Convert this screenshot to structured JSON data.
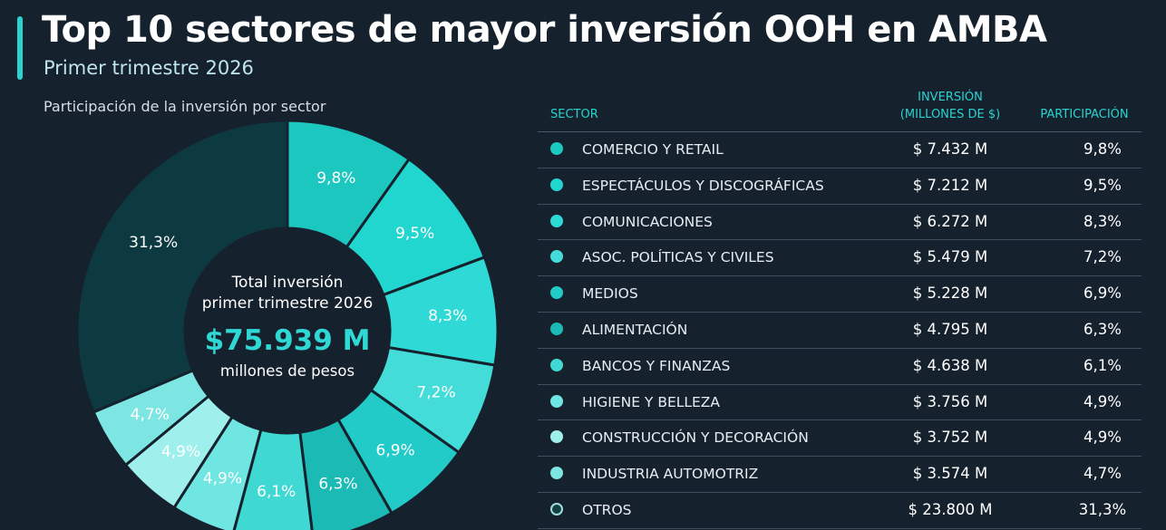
{
  "header": {
    "title": "Top 10 sectores de mayor inversión OOH en AMBA",
    "subtitle": "Primer trimestre 2026"
  },
  "chart_caption": "Participación de la inversión por sector",
  "center": {
    "line1": "Total inversión",
    "line2": "primer trimestre 2026",
    "total": "$75.939 M",
    "unit": "millones de pesos"
  },
  "table": {
    "headers": {
      "sector": "SECTOR",
      "inv_line1": "INVERSIÓN",
      "inv_line2": "(MILLONES DE $)",
      "part": "PARTICIPACIÓN"
    },
    "rows": [
      {
        "sector": "COMERCIO Y RETAIL",
        "inversion": "$ 7.432 M",
        "participacion": "9,8%",
        "color": "#1cc7c0"
      },
      {
        "sector": "ESPECTÁCULOS Y DISCOGRÁFICAS",
        "inversion": "$ 7.212 M",
        "participacion": "9,5%",
        "color": "#22d6d0"
      },
      {
        "sector": "COMUNICACIONES",
        "inversion": "$ 6.272 M",
        "participacion": "8,3%",
        "color": "#2fdad6"
      },
      {
        "sector": "ASOC. POLÍTICAS Y CIVILES",
        "inversion": "$ 5.479 M",
        "participacion": "7,2%",
        "color": "#44dcd8"
      },
      {
        "sector": "MEDIOS",
        "inversion": "$ 5.228 M",
        "participacion": "6,9%",
        "color": "#22cbc7"
      },
      {
        "sector": "ALIMENTACIÓN",
        "inversion": "$ 4.795 M",
        "participacion": "6,3%",
        "color": "#1cbab5"
      },
      {
        "sector": "BANCOS Y FINANZAS",
        "inversion": "$ 4.638 M",
        "participacion": "6,1%",
        "color": "#3fd8d2"
      },
      {
        "sector": "HIGIENE Y BELLEZA",
        "inversion": "$ 3.756 M",
        "participacion": "4,9%",
        "color": "#6fe6e2"
      },
      {
        "sector": "CONSTRUCCIÓN Y DECORACIÓN",
        "inversion": "$ 3.752 M",
        "participacion": "4,9%",
        "color": "#9ff0ec"
      },
      {
        "sector": "INDUSTRIA AUTOMOTRIZ",
        "inversion": "$ 3.574 M",
        "participacion": "4,7%",
        "color": "#7ee6e2"
      },
      {
        "sector": "OTROS",
        "inversion": "$ 23.800 M",
        "participacion": "31,3%",
        "color": "#113f45"
      }
    ]
  },
  "chart_data": {
    "type": "pie",
    "categories": [
      "COMERCIO Y RETAIL",
      "ESPECTÁCULOS Y DISCOGRÁFICAS",
      "COMUNICACIONES",
      "ASOC. POLÍTICAS Y CIVILES",
      "MEDIOS",
      "ALIMENTACIÓN",
      "BANCOS Y FINANZAS",
      "HIGIENE Y BELLEZA",
      "CONSTRUCCIÓN Y DECORACIÓN",
      "INDUSTRIA AUTOMOTRIZ",
      "OTROS"
    ],
    "values": [
      9.8,
      9.5,
      8.3,
      7.2,
      6.9,
      6.3,
      6.1,
      4.9,
      4.9,
      4.7,
      31.3
    ],
    "labels": [
      "9,8%",
      "9,5%",
      "8,3%",
      "7,2%",
      "6,9%",
      "6,3%",
      "6,1%",
      "4,9%",
      "4,9%",
      "4,7%",
      "31,3%"
    ],
    "colors": [
      "#1cc7c0",
      "#22d6d0",
      "#2fdad6",
      "#44dcd8",
      "#22cbc7",
      "#1cbab5",
      "#3fd8d2",
      "#6fe6e2",
      "#9ff0ec",
      "#7ee6e2",
      "#0d3a40"
    ],
    "label_colors": [
      "#ffffff",
      "#ffffff",
      "#ffffff",
      "#ffffff",
      "#ffffff",
      "#ffffff",
      "#ffffff",
      "#ffffff",
      "#ffffff",
      "#ffffff",
      "#ffffff"
    ],
    "hole": "donut"
  }
}
